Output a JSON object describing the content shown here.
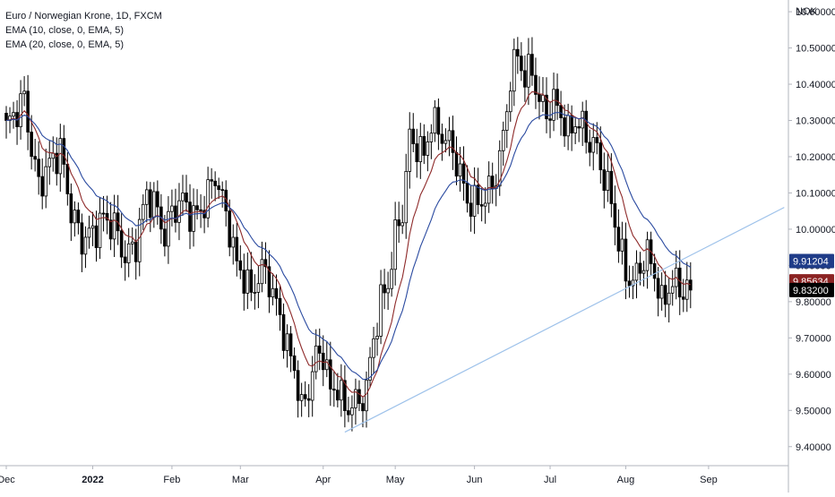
{
  "chart_data": {
    "type": "candlestick",
    "symbol_title": "Euro / Norwegian Krone, 1D, FXCM",
    "indicators": [
      {
        "name": "EMA (10, close, 0, EMA, 5)",
        "color": "#8e2a2a"
      },
      {
        "name": "EMA (20, close, 0, EMA, 5)",
        "color": "#2a4aa0"
      }
    ],
    "currency_label": "NOK",
    "ylim": [
      9.35,
      10.62
    ],
    "y_ticks": [
      "10.60000",
      "10.50000",
      "10.40000",
      "10.30000",
      "10.20000",
      "10.10000",
      "10.00000",
      "9.90000",
      "9.80000",
      "9.70000",
      "9.60000",
      "9.50000",
      "9.40000"
    ],
    "x_ticks": [
      {
        "label": "Dec",
        "index": 0
      },
      {
        "label": "2022",
        "index": 24
      },
      {
        "label": "Feb",
        "index": 46
      },
      {
        "label": "Mar",
        "index": 65
      },
      {
        "label": "Apr",
        "index": 88
      },
      {
        "label": "May",
        "index": 108
      },
      {
        "label": "Jun",
        "index": 130
      },
      {
        "label": "Jul",
        "index": 151
      },
      {
        "label": "Aug",
        "index": 172
      },
      {
        "label": "Sep",
        "index": 195
      }
    ],
    "close_anchors": [
      [
        0,
        10.28
      ],
      [
        3,
        10.33
      ],
      [
        5,
        10.36
      ],
      [
        7,
        10.22
      ],
      [
        9,
        10.12
      ],
      [
        12,
        10.18
      ],
      [
        15,
        10.22
      ],
      [
        18,
        10.05
      ],
      [
        21,
        9.97
      ],
      [
        24,
        9.99
      ],
      [
        27,
        10.03
      ],
      [
        30,
        10.01
      ],
      [
        33,
        9.92
      ],
      [
        36,
        9.96
      ],
      [
        39,
        10.1
      ],
      [
        42,
        10.05
      ],
      [
        44,
        9.98
      ],
      [
        46,
        10.05
      ],
      [
        49,
        10.08
      ],
      [
        52,
        10.03
      ],
      [
        55,
        10.07
      ],
      [
        58,
        10.15
      ],
      [
        60,
        10.08
      ],
      [
        62,
        10.0
      ],
      [
        64,
        9.9
      ],
      [
        66,
        9.87
      ],
      [
        68,
        9.82
      ],
      [
        70,
        9.87
      ],
      [
        72,
        9.89
      ],
      [
        74,
        9.82
      ],
      [
        76,
        9.76
      ],
      [
        78,
        9.67
      ],
      [
        80,
        9.62
      ],
      [
        82,
        9.5
      ],
      [
        84,
        9.56
      ],
      [
        86,
        9.65
      ],
      [
        88,
        9.66
      ],
      [
        90,
        9.55
      ],
      [
        92,
        9.57
      ],
      [
        94,
        9.5
      ],
      [
        96,
        9.52
      ],
      [
        98,
        9.52
      ],
      [
        100,
        9.56
      ],
      [
        102,
        9.7
      ],
      [
        104,
        9.8
      ],
      [
        106,
        9.85
      ],
      [
        108,
        9.98
      ],
      [
        110,
        10.05
      ],
      [
        112,
        10.25
      ],
      [
        114,
        10.23
      ],
      [
        116,
        10.2
      ],
      [
        118,
        10.3
      ],
      [
        120,
        10.27
      ],
      [
        122,
        10.25
      ],
      [
        124,
        10.22
      ],
      [
        126,
        10.15
      ],
      [
        128,
        10.08
      ],
      [
        130,
        10.07
      ],
      [
        132,
        10.08
      ],
      [
        134,
        10.1
      ],
      [
        136,
        10.15
      ],
      [
        138,
        10.25
      ],
      [
        140,
        10.42
      ],
      [
        142,
        10.48
      ],
      [
        144,
        10.42
      ],
      [
        146,
        10.44
      ],
      [
        148,
        10.35
      ],
      [
        150,
        10.32
      ],
      [
        152,
        10.35
      ],
      [
        154,
        10.32
      ],
      [
        156,
        10.26
      ],
      [
        158,
        10.3
      ],
      [
        160,
        10.28
      ],
      [
        162,
        10.24
      ],
      [
        164,
        10.22
      ],
      [
        166,
        10.14
      ],
      [
        168,
        10.08
      ],
      [
        170,
        9.96
      ],
      [
        172,
        9.88
      ],
      [
        174,
        9.85
      ],
      [
        176,
        9.9
      ],
      [
        178,
        9.93
      ],
      [
        180,
        9.88
      ],
      [
        182,
        9.79
      ],
      [
        184,
        9.84
      ],
      [
        186,
        9.85
      ],
      [
        188,
        9.83
      ],
      [
        190,
        9.832
      ]
    ],
    "ema10_last": 9.85634,
    "ema20_last": 9.91204,
    "last_close": 9.832,
    "trendline": {
      "start": {
        "index": 94,
        "value": 9.44
      },
      "end": {
        "index": 216,
        "value": 10.06
      },
      "color": "#9ec2ea"
    },
    "price_badges": [
      {
        "label": "9.91204",
        "value": 9.91204,
        "color": "#1f3c88"
      },
      {
        "label": "9.85634",
        "value": 9.85634,
        "color": "#8b2323"
      },
      {
        "label": "9.83200",
        "value": 9.832,
        "color": "#000000"
      }
    ]
  }
}
